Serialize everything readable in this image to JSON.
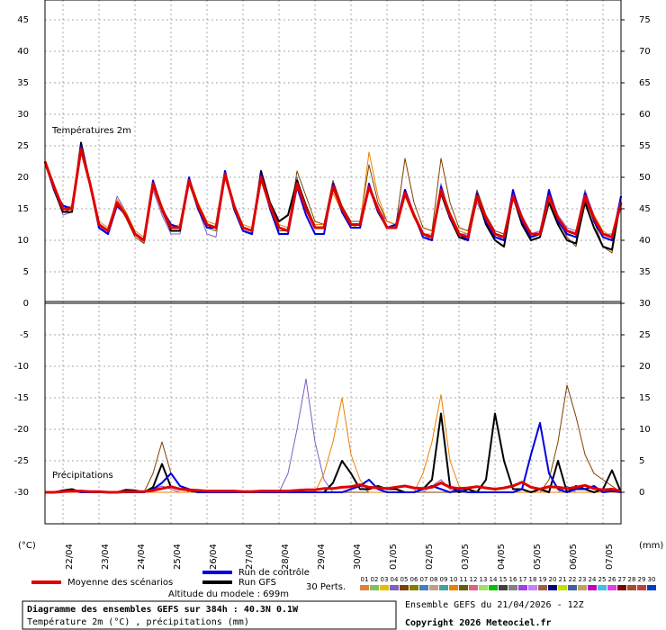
{
  "chart_data": [
    {
      "type": "line",
      "label": "Températures 2m",
      "ylim": [
        0,
        48.14
      ],
      "yticks": [
        0,
        5,
        10,
        15,
        20,
        25,
        30,
        35,
        40,
        45
      ],
      "y2lim": [
        30,
        78.14
      ],
      "y2ticks": [
        30,
        35,
        40,
        45,
        50,
        55,
        60,
        65,
        70,
        75
      ],
      "grid": true,
      "perturbations_label": "30 Perts.",
      "annotation": "Altitude du modele : 699m",
      "series": [
        {
          "name": "Moyenne des scénarios",
          "color": "#e00000",
          "values": [
            22.5,
            18.5,
            15,
            15,
            24.5,
            19,
            12.5,
            11.5,
            16,
            14,
            11,
            10,
            19,
            15,
            12,
            12,
            19.5,
            15.5,
            12.5,
            12,
            20.5,
            15.5,
            12,
            11.5,
            20,
            15.5,
            12,
            11.5,
            19,
            15,
            12,
            12,
            18.5,
            15,
            12.5,
            12.5,
            18.5,
            15,
            12,
            12,
            17.5,
            14,
            11,
            10.5,
            18,
            14,
            11,
            10.5,
            17,
            13.5,
            11,
            10.5,
            17,
            13.5,
            11,
            11,
            17,
            13.5,
            11.5,
            11,
            17,
            13.5,
            11,
            10.5,
            16
          ]
        },
        {
          "name": "Run de contrôle",
          "color": "#0000e0",
          "values": [
            22.5,
            18,
            15.5,
            15,
            25,
            19,
            12,
            11,
            15.5,
            14,
            11,
            10,
            19.5,
            15,
            12.5,
            12,
            20,
            15,
            12,
            12,
            21,
            15,
            11.5,
            11,
            20.5,
            15,
            11,
            11,
            18.5,
            14,
            11,
            11,
            19,
            14.5,
            12,
            12,
            19,
            14.5,
            12,
            12.5,
            18,
            14,
            10.5,
            10,
            18.5,
            13.5,
            11,
            10,
            17.5,
            13,
            10.5,
            10,
            18,
            13,
            10.5,
            11,
            18,
            13,
            11,
            10.5,
            17.5,
            13,
            10.5,
            10,
            17
          ]
        },
        {
          "name": "Run GFS",
          "color": "#000000",
          "values": [
            22.5,
            18,
            14.5,
            14.5,
            25.5,
            19,
            12,
            11,
            16,
            14,
            11,
            10,
            19,
            15,
            11.5,
            11.5,
            19.5,
            15,
            12,
            12,
            21,
            15,
            11.5,
            11,
            21,
            16,
            13,
            14,
            19.5,
            15.5,
            12,
            12,
            19,
            14.5,
            12,
            12,
            18.5,
            14.5,
            12,
            12,
            18,
            14,
            11,
            10.5,
            17.5,
            13.5,
            10.5,
            10,
            17,
            12.5,
            10,
            9,
            17,
            12.5,
            10,
            10.5,
            16,
            12.5,
            10,
            9.5,
            16,
            12,
            9,
            8.5,
            17
          ]
        },
        {
          "name": "01",
          "color": "#e08040"
        },
        {
          "name": "02",
          "color": "#80c060"
        },
        {
          "name": "03",
          "color": "#e0c000"
        },
        {
          "name": "04",
          "color": "#8060c0",
          "values": [
            22.5,
            18,
            14,
            14.5,
            24,
            19,
            12,
            11,
            17,
            14.5,
            11,
            9.5,
            18,
            14,
            11,
            11,
            19,
            15,
            11,
            10.5,
            20,
            15,
            11.5,
            11,
            19.5,
            15,
            11,
            11,
            20,
            15,
            12,
            12,
            19,
            15,
            13,
            13,
            19,
            15,
            13,
            12.5,
            18,
            14,
            11,
            10,
            19,
            14,
            11,
            11,
            16,
            13,
            11,
            10,
            18,
            14,
            11,
            11.5,
            18,
            14,
            12,
            11.5,
            18,
            14,
            11,
            11,
            15
          ]
        },
        {
          "name": "05",
          "color": "#804000",
          "values": [
            22,
            18,
            14.5,
            15,
            25.5,
            19,
            12,
            11,
            16,
            13.5,
            10.5,
            9.5,
            18.5,
            14.5,
            11.5,
            11.5,
            19,
            15,
            12,
            11.5,
            20,
            15,
            12,
            11.5,
            19.5,
            15,
            11.5,
            11.5,
            21,
            17,
            13,
            12.5,
            19.5,
            15.5,
            13,
            13,
            22,
            16,
            13,
            12.5,
            23,
            16,
            12,
            11.5,
            23,
            16,
            12,
            11.5,
            18,
            14,
            11.5,
            11,
            17,
            13.5,
            11,
            11,
            17.5,
            13.5,
            10.5,
            9,
            16.5,
            13,
            9,
            8,
            16
          ]
        },
        {
          "name": "06",
          "color": "#808000"
        },
        {
          "name": "07",
          "color": "#4080c0"
        },
        {
          "name": "08",
          "color": "#c0a080"
        },
        {
          "name": "09",
          "color": "#40a0a0"
        },
        {
          "name": "10",
          "color": "#f08000",
          "values": [
            22.5,
            19,
            15,
            15.5,
            25,
            19.5,
            13,
            12,
            16.5,
            14.5,
            11.5,
            10.5,
            19.5,
            15.5,
            12,
            12.5,
            20,
            16,
            13,
            12.5,
            20,
            15.5,
            12.5,
            12,
            20.5,
            16,
            12.5,
            12,
            19.5,
            15.5,
            12.5,
            12.5,
            17.5,
            14.5,
            12,
            12.5,
            24,
            17,
            13,
            12.5,
            17,
            13.5,
            11,
            11,
            18.5,
            14.5,
            11.5,
            11,
            16.5,
            13,
            10.5,
            10,
            16.5,
            13,
            10,
            10.5,
            16,
            13,
            11,
            10.5,
            17,
            14,
            11.5,
            10.5,
            16.5
          ]
        },
        {
          "name": "11",
          "color": "#606000"
        },
        {
          "name": "12",
          "color": "#e06080"
        },
        {
          "name": "13",
          "color": "#a0e060"
        },
        {
          "name": "14",
          "color": "#00c000"
        },
        {
          "name": "15",
          "color": "#404040"
        },
        {
          "name": "16",
          "color": "#808080"
        },
        {
          "name": "17",
          "color": "#a040e0"
        },
        {
          "name": "18",
          "color": "#c080ff"
        },
        {
          "name": "19",
          "color": "#a06040"
        },
        {
          "name": "20",
          "color": "#000080"
        },
        {
          "name": "21",
          "color": "#c0e000"
        },
        {
          "name": "22",
          "color": "#4060a0"
        },
        {
          "name": "23",
          "color": "#c0a060"
        },
        {
          "name": "24",
          "color": "#c000c0"
        },
        {
          "name": "25",
          "color": "#40c0e0"
        },
        {
          "name": "26",
          "color": "#e040e0"
        },
        {
          "name": "27",
          "color": "#800000"
        },
        {
          "name": "28",
          "color": "#a05030"
        },
        {
          "name": "29",
          "color": "#c04040"
        },
        {
          "name": "30",
          "color": "#0040c0"
        }
      ]
    },
    {
      "type": "line",
      "label": "Précipitations",
      "ylim": [
        -35,
        0
      ],
      "yticks": [
        -5,
        -10,
        -15,
        -20,
        -25,
        -30
      ],
      "y2lim": [
        -5,
        30
      ],
      "y2ticks": [
        0,
        5,
        10,
        15,
        20,
        25
      ],
      "ylabel": "(°C)",
      "y2label": "(mm)",
      "grid": true,
      "xlim": [
        0,
        384
      ],
      "x": [
        0,
        6,
        12,
        18,
        24,
        30,
        36,
        42,
        48,
        54,
        60,
        66,
        72,
        78,
        84,
        90,
        96,
        102,
        108,
        114,
        120,
        126,
        132,
        138,
        144,
        150,
        156,
        162,
        168,
        174,
        180,
        186,
        192,
        198,
        204,
        210,
        216,
        222,
        228,
        234,
        240,
        246,
        252,
        258,
        264,
        270,
        276,
        282,
        288,
        294,
        300,
        306,
        312,
        318,
        324,
        330,
        336,
        342,
        348,
        354,
        360,
        366,
        372,
        378,
        384
      ],
      "xticks": [
        {
          "value": 12,
          "label": "22/04"
        },
        {
          "value": 36,
          "label": "23/04"
        },
        {
          "value": 60,
          "label": "24/04"
        },
        {
          "value": 84,
          "label": "25/04"
        },
        {
          "value": 108,
          "label": "26/04"
        },
        {
          "value": 132,
          "label": "27/04"
        },
        {
          "value": 156,
          "label": "28/04"
        },
        {
          "value": 180,
          "label": "29/04"
        },
        {
          "value": 204,
          "label": "30/04"
        },
        {
          "value": 228,
          "label": "01/05"
        },
        {
          "value": 252,
          "label": "02/05"
        },
        {
          "value": 276,
          "label": "03/05"
        },
        {
          "value": 300,
          "label": "04/05"
        },
        {
          "value": 324,
          "label": "05/05"
        },
        {
          "value": 348,
          "label": "06/05"
        },
        {
          "value": 372,
          "label": "07/05"
        }
      ],
      "series": [
        {
          "color": "#e00000",
          "axis": "y2",
          "values": [
            0,
            0,
            0.1,
            0.2,
            0.2,
            0.1,
            0.1,
            0,
            0,
            0.1,
            0.1,
            0.1,
            0.3,
            0.6,
            0.9,
            0.5,
            0.4,
            0.3,
            0.2,
            0.2,
            0.2,
            0.2,
            0.1,
            0.1,
            0.2,
            0.2,
            0.2,
            0.2,
            0.3,
            0.4,
            0.4,
            0.6,
            0.6,
            0.8,
            0.9,
            1.2,
            0.8,
            0.7,
            0.6,
            0.8,
            1,
            0.7,
            0.6,
            0.8,
            1.5,
            0.8,
            0.6,
            0.7,
            0.9,
            0.7,
            0.5,
            0.7,
            1,
            1.6,
            0.8,
            0.5,
            0.9,
            0.8,
            0.6,
            0.8,
            1.1,
            0.6,
            0.4,
            0.5,
            0.2
          ]
        },
        {
          "color": "#0000e0",
          "axis": "y2",
          "values": [
            0,
            0,
            0.2,
            0.3,
            0,
            0,
            0,
            0,
            0,
            0,
            0,
            0,
            0.5,
            1.5,
            3,
            1,
            0.5,
            0,
            0,
            0,
            0,
            0,
            0,
            0,
            0,
            0,
            0,
            0,
            0,
            0,
            0,
            0,
            0,
            0,
            0.5,
            1,
            2,
            0.5,
            0,
            0,
            0,
            0,
            0.5,
            1,
            0.5,
            0,
            0.3,
            0,
            0,
            0,
            0,
            0,
            0,
            0.5,
            6,
            11,
            3,
            0.5,
            0,
            0.5,
            0.5,
            1,
            0,
            0.2,
            0
          ]
        },
        {
          "color": "#000000",
          "axis": "y2",
          "values": [
            0,
            0,
            0.3,
            0.5,
            0,
            0,
            0,
            0,
            0,
            0.4,
            0.3,
            0,
            0.8,
            4.5,
            0.8,
            0.5,
            0.3,
            0,
            0,
            0,
            0,
            0,
            0,
            0,
            0,
            0,
            0,
            0,
            0,
            0,
            0,
            0,
            1.5,
            5,
            3,
            0.5,
            0.5,
            1,
            0.5,
            0.5,
            0,
            0,
            0.5,
            2,
            12.5,
            1,
            0,
            0.5,
            0,
            2,
            12.5,
            5,
            0.5,
            0.5,
            0,
            0.5,
            0,
            5,
            0,
            1,
            0.5,
            0,
            0.5,
            3.5,
            0
          ]
        },
        {
          "color": "#8060c0",
          "axis": "y2",
          "values": [
            0,
            0,
            0,
            0,
            0,
            0,
            0,
            0,
            0,
            0,
            0,
            0,
            0.5,
            1,
            0.5,
            0,
            0,
            0,
            0,
            0,
            0,
            0,
            0,
            0,
            0,
            0,
            0,
            3,
            10,
            18,
            8,
            2,
            0,
            0,
            0.5,
            1,
            0,
            0,
            0,
            0,
            0,
            0,
            0,
            1,
            2,
            0.5,
            0,
            0,
            0,
            0,
            0,
            0,
            0,
            0.5,
            0,
            0,
            0,
            0,
            1,
            0,
            0,
            0,
            0,
            0,
            0
          ]
        },
        {
          "color": "#804000",
          "axis": "y2",
          "values": [
            0,
            0,
            0,
            0,
            0,
            0,
            0,
            0,
            0,
            0,
            0,
            0,
            3,
            8,
            3,
            1,
            0,
            0,
            0,
            0,
            0,
            0,
            0,
            0,
            0,
            0,
            0,
            0,
            0,
            0,
            0,
            0,
            0,
            0,
            0,
            0,
            0,
            0,
            0,
            0,
            0,
            0,
            0,
            0,
            0,
            0,
            0,
            0,
            0,
            0,
            0,
            0,
            0,
            0,
            0,
            0,
            2,
            8,
            17,
            12,
            6,
            3,
            2,
            1,
            0
          ]
        },
        {
          "color": "#f08000",
          "axis": "y2",
          "values": [
            0,
            0,
            0,
            0,
            0,
            0,
            0,
            0,
            0,
            0,
            0,
            0,
            0,
            0,
            0,
            0,
            0,
            0,
            0,
            0,
            0,
            0,
            0,
            0,
            0,
            0,
            0,
            0,
            0,
            0,
            0,
            3,
            8,
            15,
            6,
            2,
            0,
            0,
            0,
            0,
            0,
            0,
            3,
            8,
            15.5,
            5,
            1,
            0,
            0,
            0,
            0,
            0,
            0,
            0,
            0,
            0,
            0,
            0,
            0,
            0,
            0,
            0,
            0,
            0,
            0
          ]
        }
      ]
    }
  ],
  "footer": {
    "title": "Diagramme des ensembles GEFS sur 384h : 40.3N 0.1W",
    "subtitle": "Température 2m (°C) , précipitations (mm)",
    "run": "Ensemble GEFS du 21/04/2026 - 12Z",
    "copyright": "Copyright 2026 Meteociel.fr"
  }
}
